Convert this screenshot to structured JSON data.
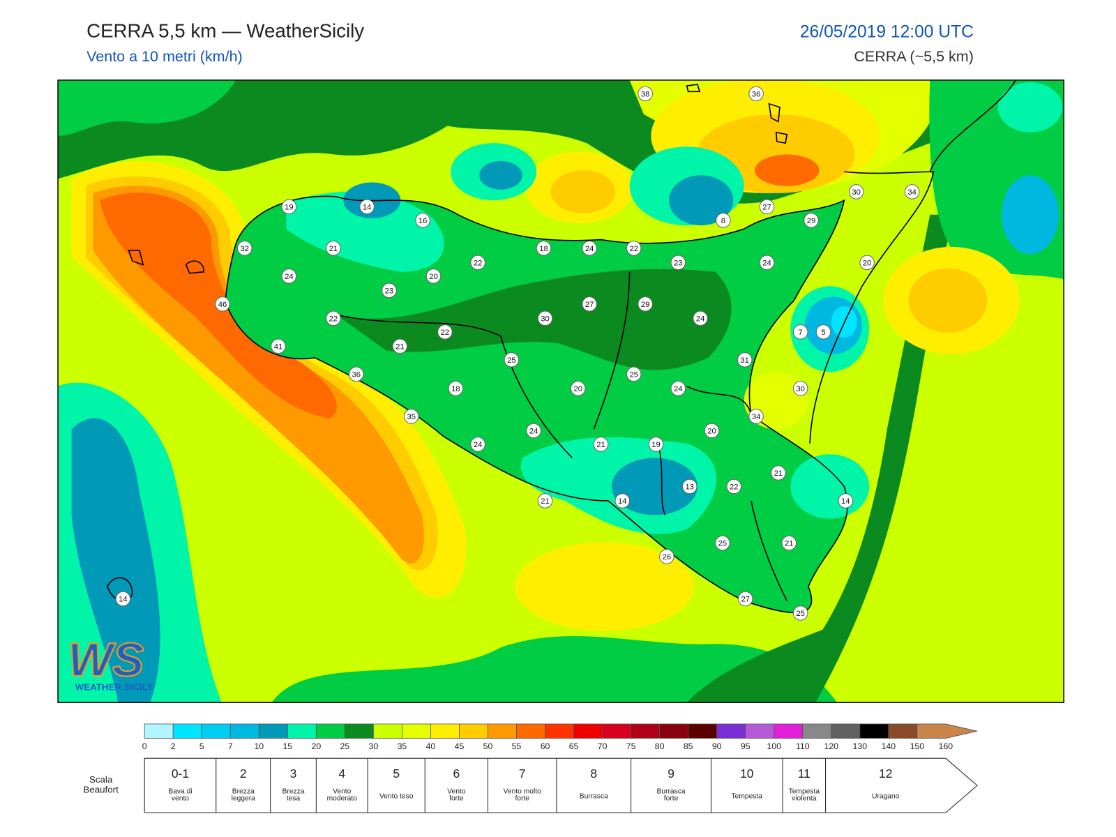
{
  "header": {
    "title": "CERRA 5,5 km — WeatherSicily",
    "subtitle": "Vento a 10 metri (km/h)",
    "datetime": "26/05/2019 12:00 UTC",
    "model": "CERRA (~5,5 km)"
  },
  "map": {
    "station_values": [
      38,
      36,
      19,
      14,
      16,
      32,
      21,
      27,
      30,
      34,
      29,
      8,
      18,
      24,
      22,
      22,
      23,
      24,
      20,
      24,
      20,
      23,
      46,
      22,
      27,
      29,
      30,
      24,
      22,
      7,
      5,
      41,
      21,
      31,
      25,
      36,
      25,
      18,
      20,
      24,
      30,
      35,
      34,
      24,
      20,
      24,
      21,
      19,
      21,
      13,
      22,
      21,
      14,
      14,
      25,
      21,
      26,
      27,
      25,
      14
    ]
  },
  "colorbar": {
    "ticks": [
      0,
      2,
      5,
      7,
      10,
      15,
      20,
      25,
      30,
      35,
      40,
      45,
      50,
      55,
      60,
      65,
      70,
      75,
      80,
      85,
      90,
      95,
      100,
      110,
      120,
      130,
      140,
      150,
      160
    ],
    "colors": [
      "#b3f5ff",
      "#00e5ff",
      "#00cdf2",
      "#00b8e0",
      "#0099b8",
      "#00f5a8",
      "#00cc44",
      "#0b8a1f",
      "#ccff00",
      "#e3ff00",
      "#ffee00",
      "#ffcc00",
      "#ff9900",
      "#ff6a00",
      "#ff3300",
      "#ee0000",
      "#d8001e",
      "#b00018",
      "#880010",
      "#5a0000",
      "#7a2ed6",
      "#b45ad6",
      "#e020d8",
      "#888888",
      "#606060",
      "#000000",
      "#8a4a2a",
      "#c8844a"
    ]
  },
  "beaufort": {
    "label": [
      "Scala",
      "Beaufort"
    ],
    "classes": [
      {
        "force": "0-1",
        "desc": [
          "Bava di",
          "vento"
        ]
      },
      {
        "force": 2,
        "desc": [
          "Brezza",
          "leggera"
        ]
      },
      {
        "force": 3,
        "desc": [
          "Brezza",
          "tesa"
        ]
      },
      {
        "force": 4,
        "desc": [
          "Vento",
          "moderato"
        ]
      },
      {
        "force": 5,
        "desc": [
          "Vento teso"
        ]
      },
      {
        "force": 6,
        "desc": [
          "Vento",
          "forte"
        ]
      },
      {
        "force": 7,
        "desc": [
          "Vento molto",
          "forte"
        ]
      },
      {
        "force": 8,
        "desc": [
          "Burrasca"
        ]
      },
      {
        "force": 9,
        "desc": [
          "Burrasca",
          "forte"
        ]
      },
      {
        "force": 10,
        "desc": [
          "Tempesta"
        ]
      },
      {
        "force": 11,
        "desc": [
          "Tempesta",
          "violenta"
        ]
      },
      {
        "force": 12,
        "desc": [
          "Uragano"
        ]
      }
    ]
  },
  "logo": {
    "mark": "WS",
    "text": "WEATHER SICILY"
  }
}
